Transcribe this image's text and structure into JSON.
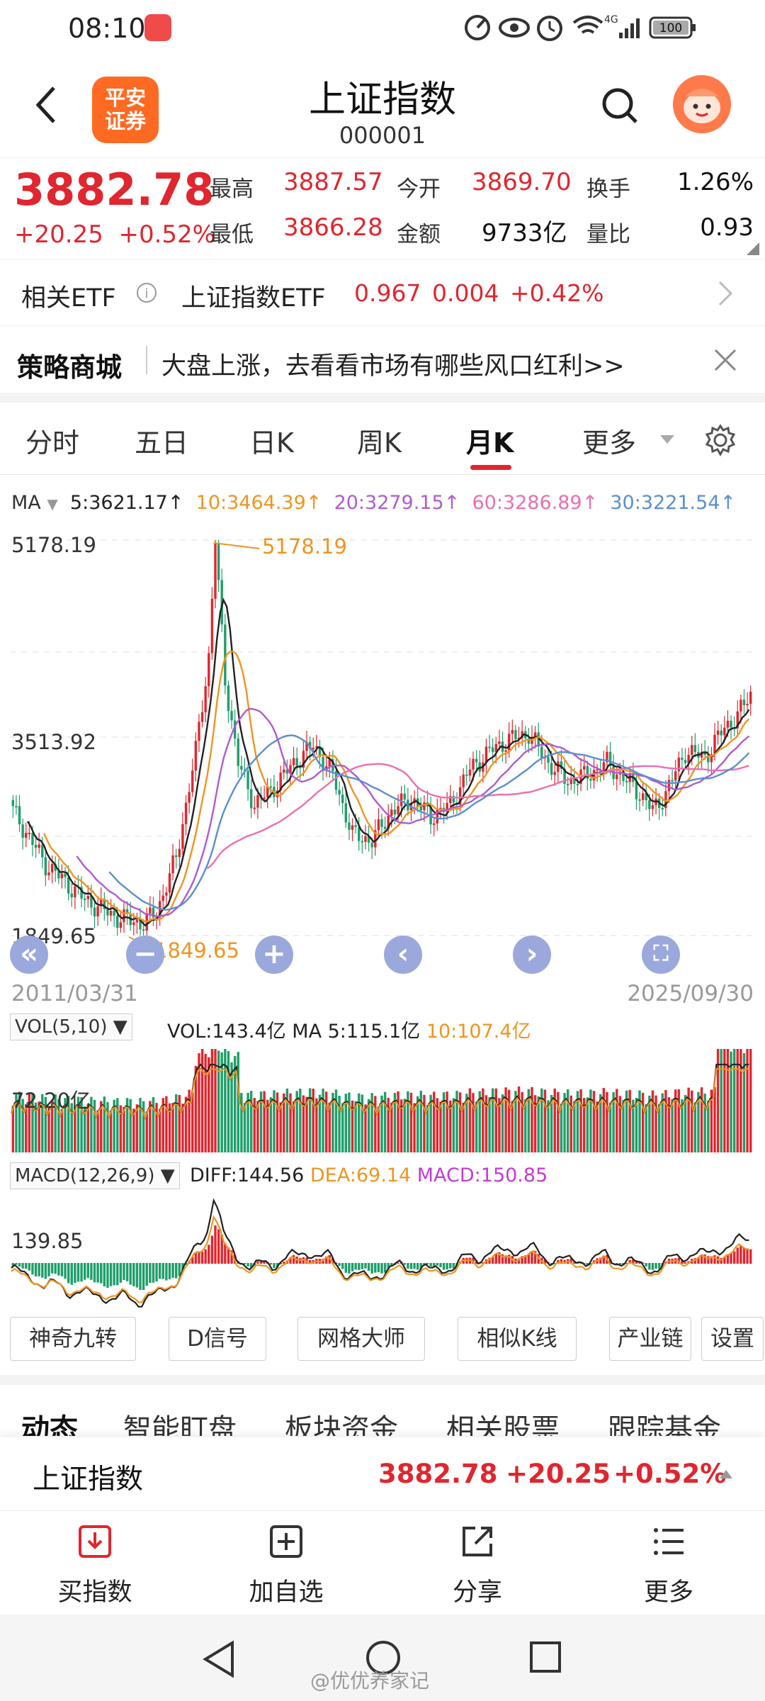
{
  "status": {
    "time": "08:10",
    "network": "4G",
    "battery": "100"
  },
  "header": {
    "logo_line1": "平安",
    "logo_line2": "证券",
    "title": "上证指数",
    "code": "000001"
  },
  "quote": {
    "price": "3882.78",
    "change": "+20.25",
    "change_pct": "+0.52%",
    "fields": [
      {
        "label": "最高",
        "value": "3887.57"
      },
      {
        "label": "最低",
        "value": "3866.28"
      },
      {
        "label": "今开",
        "value": "3869.70"
      },
      {
        "label": "金额",
        "value": "9733亿"
      },
      {
        "label": "换手",
        "value": "1.26%"
      },
      {
        "label": "量比",
        "value": "0.93"
      }
    ]
  },
  "etf": {
    "label": "相关ETF",
    "name": "上证指数ETF",
    "price": "0.967",
    "change": "0.004",
    "change_pct": "+0.42%"
  },
  "strategy": {
    "label": "策略商城",
    "text": "大盘上涨，去看看市场有哪些风口红利>>"
  },
  "tabs": [
    "分时",
    "五日",
    "日K",
    "周K",
    "月K",
    "更多"
  ],
  "ma": {
    "label": "MA",
    "items": [
      {
        "text": "5:3621.17↑",
        "color": "#222222"
      },
      {
        "text": "10:3464.39↑",
        "color": "#ef9520"
      },
      {
        "text": "20:3279.15↑",
        "color": "#b05bd0"
      },
      {
        "text": "60:3286.89↑",
        "color": "#ec6fb1"
      },
      {
        "text": "30:3221.54↑",
        "color": "#5b8fd0"
      }
    ]
  },
  "kline": {
    "ymax": "5178.19",
    "ymid": "3513.92",
    "ymin": "1849.65",
    "high_label": "5178.19",
    "low_label": "1849.65",
    "start_date": "2011/03/31",
    "end_date": "2025/09/30"
  },
  "vol": {
    "selector": "VOL(5,10)",
    "vol": "VOL:143.4亿",
    "ma5": "MA 5:115.1亿",
    "ma10": "10:107.4亿",
    "ylabel": "72.20亿"
  },
  "macd": {
    "selector": "MACD(12,26,9)",
    "diff": "DIFF:144.56",
    "dea": "DEA:69.14",
    "macd": "MACD:150.85",
    "ylabel": "139.85"
  },
  "tools": [
    "神奇九转",
    "D信号",
    "网格大师",
    "相似K线",
    "产业链",
    "设置"
  ],
  "info_tabs": [
    "动态",
    "智能盯盘",
    "板块资金",
    "相关股票",
    "跟踪基金"
  ],
  "summary": {
    "name": "上证指数",
    "price": "3882.78",
    "change": "+20.25",
    "change_pct": "+0.52%"
  },
  "actions": [
    "买指数",
    "加自选",
    "分享",
    "更多"
  ],
  "watermark": "@优优养家记",
  "colors": {
    "up": "#e0262f",
    "down": "#1f9e6a",
    "accent": "#ff6a23"
  }
}
